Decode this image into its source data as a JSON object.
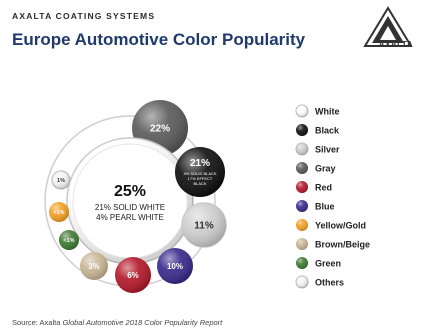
{
  "header": {
    "brand": "AXALTA COATING SYSTEMS",
    "title": "Europe Automotive Color Popularity",
    "logo_text": "AXALTA"
  },
  "source": {
    "prefix": "Source: Axalta ",
    "title": "Global Automotive 2018 Color Popularity Report"
  },
  "chart_data": {
    "type": "bubble",
    "title": "Europe Automotive Color Popularity",
    "legend_position": "right",
    "series": [
      {
        "name": "White",
        "value": 25,
        "label": "25%",
        "sub": [
          "21% SOLID WHITE",
          "4% PEARL WHITE"
        ],
        "color": "#ffffff"
      },
      {
        "name": "Black",
        "value": 21,
        "label": "21%",
        "sub": [
          "4% SOLID BLACK",
          "17% EFFECT",
          "BLACK"
        ],
        "color": "#111111"
      },
      {
        "name": "Silver",
        "value": 11,
        "label": "11%",
        "color": "#cfcfcf"
      },
      {
        "name": "Gray",
        "value": 22,
        "label": "22%",
        "color": "#5b5b5b"
      },
      {
        "name": "Red",
        "value": 6,
        "label": "6%",
        "color": "#b3192a"
      },
      {
        "name": "Blue",
        "value": 10,
        "label": "10%",
        "color": "#3a2a8c"
      },
      {
        "name": "Yellow/Gold",
        "value": 1,
        "label": "<1%",
        "color": "#f2a024"
      },
      {
        "name": "Brown/Beige",
        "value": 3,
        "label": "3%",
        "color": "#c9b594"
      },
      {
        "name": "Green",
        "value": 1,
        "label": "<1%",
        "color": "#3f7a34"
      },
      {
        "name": "Others",
        "value": 1,
        "label": "1%",
        "color": "#f4f4f4"
      }
    ]
  }
}
